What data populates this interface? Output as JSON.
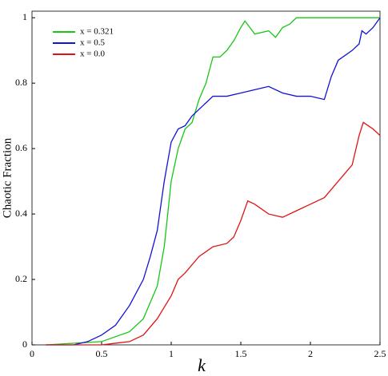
{
  "chart_data": {
    "type": "line",
    "xlabel": "k",
    "ylabel": "Chaotic Fraction",
    "xlim": [
      0,
      2.5
    ],
    "ylim": [
      0,
      1.02
    ],
    "xticks": [
      0,
      0.5,
      1,
      1.5,
      2,
      2.5
    ],
    "yticks": [
      0,
      0.2,
      0.4,
      0.6,
      0.8,
      1
    ],
    "legend": "upper-left",
    "series": [
      {
        "name": "x = 0.321",
        "color": "#16c716",
        "x": [
          0.1,
          0.5,
          0.7,
          0.8,
          0.9,
          0.95,
          1.0,
          1.05,
          1.1,
          1.15,
          1.2,
          1.25,
          1.3,
          1.35,
          1.4,
          1.45,
          1.5,
          1.53,
          1.6,
          1.7,
          1.75,
          1.8,
          1.85,
          1.9,
          2.5
        ],
        "values": [
          0,
          0.01,
          0.04,
          0.08,
          0.18,
          0.3,
          0.5,
          0.6,
          0.66,
          0.68,
          0.75,
          0.8,
          0.88,
          0.88,
          0.9,
          0.93,
          0.97,
          0.99,
          0.95,
          0.96,
          0.94,
          0.97,
          0.98,
          1.0,
          1.0
        ]
      },
      {
        "name": "x = 0.5",
        "color": "#1212d8",
        "x": [
          0.1,
          0.3,
          0.4,
          0.5,
          0.6,
          0.7,
          0.8,
          0.85,
          0.9,
          0.95,
          1.0,
          1.05,
          1.1,
          1.15,
          1.2,
          1.25,
          1.3,
          1.4,
          1.5,
          1.6,
          1.7,
          1.8,
          1.9,
          2.0,
          2.1,
          2.15,
          2.2,
          2.3,
          2.35,
          2.37,
          2.4,
          2.45,
          2.5
        ],
        "values": [
          0,
          0,
          0.01,
          0.03,
          0.06,
          0.12,
          0.2,
          0.27,
          0.35,
          0.5,
          0.62,
          0.66,
          0.67,
          0.7,
          0.72,
          0.74,
          0.76,
          0.76,
          0.77,
          0.78,
          0.79,
          0.77,
          0.76,
          0.76,
          0.75,
          0.82,
          0.87,
          0.9,
          0.92,
          0.96,
          0.95,
          0.97,
          1.0
        ]
      },
      {
        "name": "x = 0.0",
        "color": "#e01414",
        "x": [
          0.1,
          0.5,
          0.6,
          0.7,
          0.8,
          0.9,
          1.0,
          1.05,
          1.1,
          1.2,
          1.3,
          1.4,
          1.45,
          1.5,
          1.55,
          1.6,
          1.7,
          1.8,
          1.9,
          2.0,
          2.1,
          2.2,
          2.3,
          2.35,
          2.38,
          2.45,
          2.5
        ],
        "values": [
          0,
          0,
          0.005,
          0.01,
          0.03,
          0.08,
          0.15,
          0.2,
          0.22,
          0.27,
          0.3,
          0.31,
          0.33,
          0.38,
          0.44,
          0.43,
          0.4,
          0.39,
          0.41,
          0.43,
          0.45,
          0.5,
          0.55,
          0.64,
          0.68,
          0.66,
          0.64
        ]
      }
    ]
  }
}
